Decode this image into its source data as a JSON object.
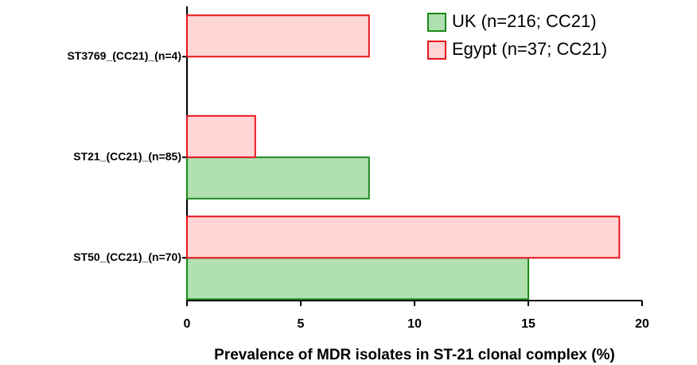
{
  "chart_data": {
    "type": "bar",
    "orientation": "horizontal",
    "x_label": "Prevalence of MDR isolates in ST-21 clonal complex (%)",
    "categories": [
      "ST3769_(CC21)_(n=4)",
      "ST21_(CC21)_(n=85)",
      "ST50_(CC21)_(n=70)"
    ],
    "series": [
      {
        "name": "UK (n=216; CC21)",
        "color": "#b0e0b0",
        "edge_color": "#1a8a1a",
        "values": [
          0,
          8,
          15
        ]
      },
      {
        "name": "Egypt (n=37; CC21)",
        "color": "#ffd6d6",
        "edge_color": "#e8141e",
        "values": [
          8,
          3,
          19
        ]
      }
    ],
    "xlim": [
      0,
      20
    ],
    "xticks": [
      0,
      5,
      10,
      15,
      20
    ],
    "legend": "upper right"
  }
}
